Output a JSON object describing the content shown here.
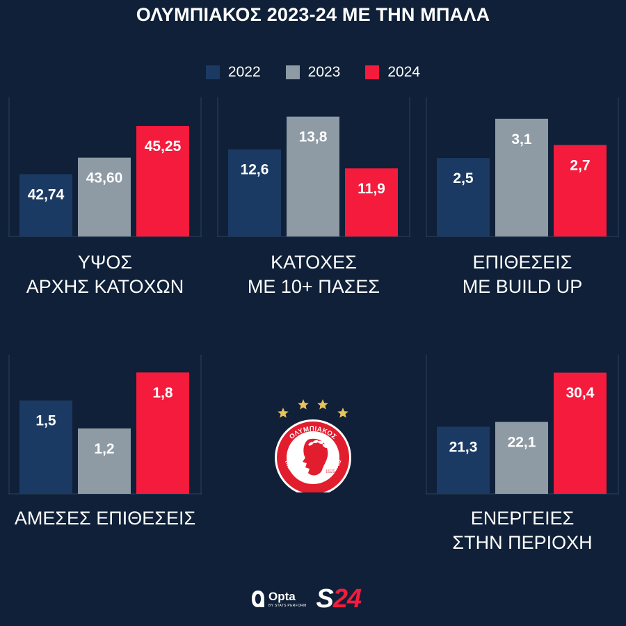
{
  "title": "ΟΛΥΜΠΙΑΚΟΣ 2023-24 ΜΕ ΤΗΝ ΜΠΑΛΑ",
  "colors": {
    "2022": "#1b3a63",
    "2023": "#8e9aa4",
    "2024": "#f41b3d",
    "background": "#0f2038"
  },
  "chart_data": [
    {
      "type": "bar",
      "label_lines": [
        "ΥΨΟΣ",
        "ΑΡΧΗΣ ΚΑΤΟΧΩΝ"
      ],
      "categories": [
        "2022",
        "2023",
        "2024"
      ],
      "values": [
        42.74,
        43.6,
        45.25
      ],
      "display": [
        "42,74",
        "43,60",
        "45,25"
      ],
      "ylim": [
        39.5,
        46.3
      ]
    },
    {
      "type": "bar",
      "label_lines": [
        "ΚΑΤΟΧΕΣ",
        "ΜΕ 10+ ΠΑΣΕΣ"
      ],
      "categories": [
        "2022",
        "2023",
        "2024"
      ],
      "values": [
        12.6,
        13.8,
        11.9
      ],
      "display": [
        "12,6",
        "13,8",
        "11,9"
      ],
      "ylim": [
        9.4,
        14.2
      ]
    },
    {
      "type": "bar",
      "label_lines": [
        "ΕΠΙΘΕΣΕΙΣ",
        "ΜΕ BUILD UP"
      ],
      "categories": [
        "2022",
        "2023",
        "2024"
      ],
      "values": [
        2.5,
        3.1,
        2.7
      ],
      "display": [
        "2,5",
        "3,1",
        "2,7"
      ],
      "ylim": [
        1.3,
        3.3
      ]
    },
    {
      "type": "bar",
      "label_lines": [
        "ΑΜΕΣΕΣ ΕΠΙΘΕΣΕΙΣ"
      ],
      "categories": [
        "2022",
        "2023",
        "2024"
      ],
      "values": [
        1.5,
        1.2,
        1.8
      ],
      "display": [
        "1,5",
        "1,2",
        "1,8"
      ],
      "ylim": [
        0.5,
        1.9
      ]
    },
    {
      "type": "bar",
      "label_lines": [
        "ΕΝΕΡΓΕΙΕΣ",
        "ΣΤΗΝ ΠΕΡΙΟΧΗ"
      ],
      "categories": [
        "2022",
        "2023",
        "2024"
      ],
      "values": [
        21.3,
        22.1,
        30.4
      ],
      "display": [
        "21,3",
        "22,1",
        "30,4"
      ],
      "ylim": [
        10.0,
        32.0
      ]
    }
  ],
  "logo": {
    "club_arc_text": "ΟΛΥΜΠΙΑΚΟΣ",
    "motto_text": "ΣΥΝΔΕΣΜΟΣ ΦΙΛΑΘΛΩΝ ΠΕΙΡΑΙΩΣ",
    "year": "1925",
    "stars": 4
  },
  "footer": {
    "opta": "Opta",
    "opta_sub": "BY STATS PERFORM",
    "s24_first": "S",
    "s24_rest": "24"
  }
}
